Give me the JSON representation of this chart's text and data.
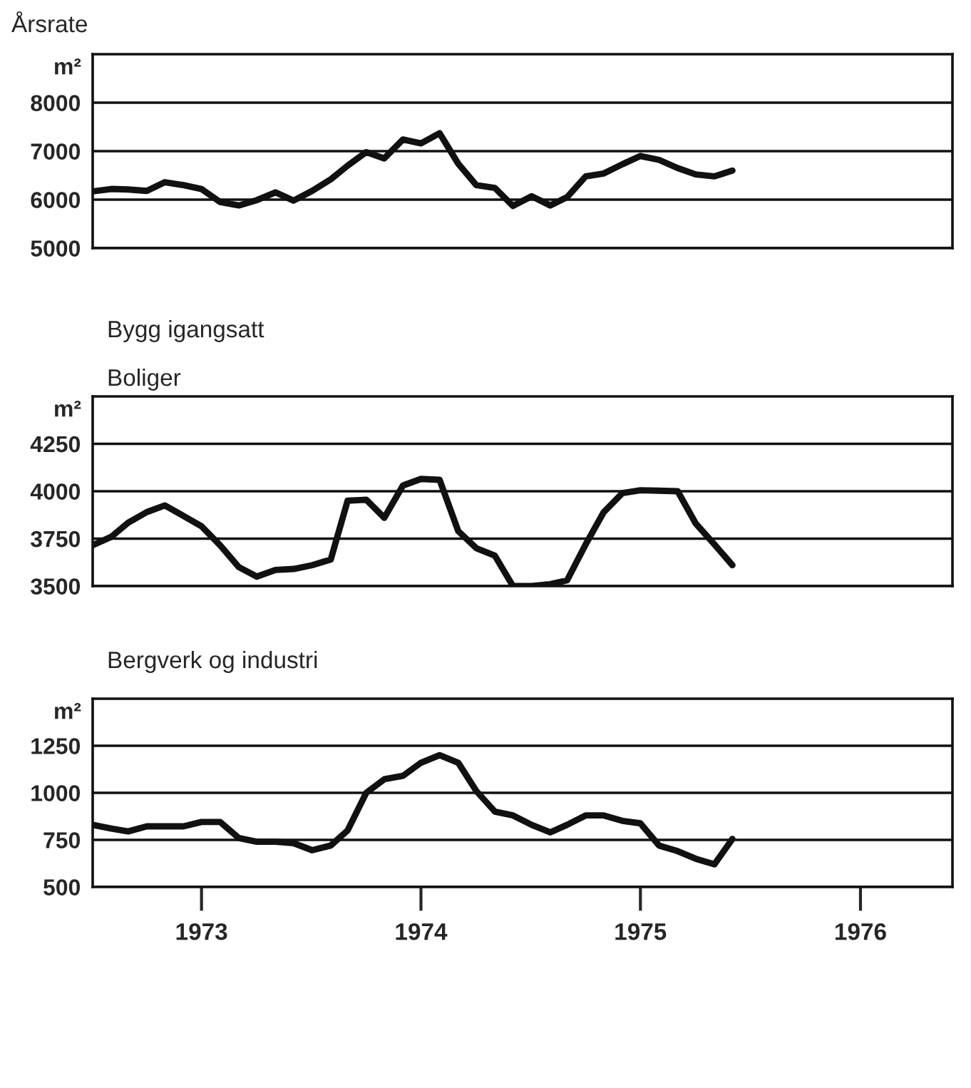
{
  "chart_data": [
    {
      "type": "line",
      "title": "Årsrate",
      "ylabel": "m²",
      "x": [
        "1973-01",
        "1973-02",
        "1973-03",
        "1973-04",
        "1973-05",
        "1973-06",
        "1973-07",
        "1973-08",
        "1973-09",
        "1973-10",
        "1973-11",
        "1973-12",
        "1974-01",
        "1974-02",
        "1974-03",
        "1974-04",
        "1974-05",
        "1974-06",
        "1974-07",
        "1974-08",
        "1974-09",
        "1974-10",
        "1974-11",
        "1974-12",
        "1975-01",
        "1975-02",
        "1975-03",
        "1975-04",
        "1975-05",
        "1975-06",
        "1975-07",
        "1975-08",
        "1975-09",
        "1975-10",
        "1975-11",
        "1975-12"
      ],
      "series": [
        {
          "color": "#111111",
          "values": [
            6170,
            6220,
            6210,
            6180,
            6360,
            6300,
            6220,
            5950,
            5880,
            5990,
            6150,
            5980,
            6180,
            6420,
            6700,
            6980,
            6850,
            7240,
            7160,
            7370,
            6740,
            6300,
            6240,
            5870,
            6070,
            5880,
            6050,
            6480,
            6540,
            6730,
            6900,
            6820,
            6650,
            6520,
            6480,
            6600
          ]
        }
      ],
      "xlim": [
        "1973-01",
        "1976-12"
      ],
      "ylim": [
        5000,
        9000
      ],
      "yticks": [
        5000,
        6000,
        7000,
        8000
      ],
      "grid": "y",
      "tick_labels": "y"
    },
    {
      "type": "line",
      "title": "Bygg igangsatt",
      "subtitle": "Boliger",
      "ylabel": "m²",
      "x": [
        "1973-01",
        "1973-02",
        "1973-03",
        "1973-04",
        "1973-05",
        "1973-06",
        "1973-07",
        "1973-08",
        "1973-09",
        "1973-10",
        "1973-11",
        "1973-12",
        "1974-01",
        "1974-02",
        "1974-03",
        "1974-04",
        "1974-05",
        "1974-06",
        "1974-07",
        "1974-08",
        "1974-09",
        "1974-10",
        "1974-11",
        "1974-12",
        "1975-01",
        "1975-02",
        "1975-03",
        "1975-04",
        "1975-05",
        "1975-06",
        "1975-07",
        "1975-08",
        "1975-09",
        "1975-10",
        "1975-11",
        "1975-12"
      ],
      "series": [
        {
          "color": "#111111",
          "values": [
            3715,
            3760,
            3834,
            3890,
            3925,
            3870,
            3815,
            3715,
            3600,
            3550,
            3585,
            3590,
            3610,
            3640,
            3950,
            3955,
            3860,
            4030,
            4065,
            4060,
            3790,
            3700,
            3660,
            3500,
            3500,
            3510,
            3530,
            3720,
            3890,
            3990,
            4005,
            4003,
            4000,
            3830,
            3720,
            3610
          ]
        }
      ],
      "xlim": [
        "1973-01",
        "1976-12"
      ],
      "ylim": [
        3500,
        4500
      ],
      "yticks": [
        3500,
        3750,
        4000,
        4250
      ],
      "grid": "y",
      "tick_labels": "y"
    },
    {
      "type": "line",
      "title": "Bergverk og industri",
      "ylabel": "m²",
      "x": [
        "1973-01",
        "1973-02",
        "1973-03",
        "1973-04",
        "1973-05",
        "1973-06",
        "1973-07",
        "1973-08",
        "1973-09",
        "1973-10",
        "1973-11",
        "1973-12",
        "1974-01",
        "1974-02",
        "1974-03",
        "1974-04",
        "1974-05",
        "1974-06",
        "1974-07",
        "1974-08",
        "1974-09",
        "1974-10",
        "1974-11",
        "1974-12",
        "1975-01",
        "1975-02",
        "1975-03",
        "1975-04",
        "1975-05",
        "1975-06",
        "1975-07",
        "1975-08",
        "1975-09",
        "1975-10",
        "1975-11",
        "1975-12"
      ],
      "series": [
        {
          "color": "#111111",
          "values": [
            830,
            810,
            795,
            822,
            822,
            822,
            845,
            845,
            760,
            740,
            740,
            733,
            695,
            720,
            800,
            1000,
            1072,
            1090,
            1160,
            1200,
            1160,
            1010,
            900,
            880,
            830,
            790,
            830,
            880,
            880,
            851,
            838,
            720,
            690,
            650,
            620,
            755
          ]
        }
      ],
      "xlim": [
        "1973-01",
        "1976-12"
      ],
      "ylim": [
        500,
        1500
      ],
      "yticks": [
        500,
        750,
        1000,
        1250
      ],
      "grid": "y",
      "xticks": [
        {
          "value": "1973-07",
          "label": "1973"
        },
        {
          "value": "1974-07",
          "label": "1974"
        },
        {
          "value": "1975-07",
          "label": "1975"
        },
        {
          "value": "1976-07",
          "label": "1976"
        }
      ]
    }
  ]
}
